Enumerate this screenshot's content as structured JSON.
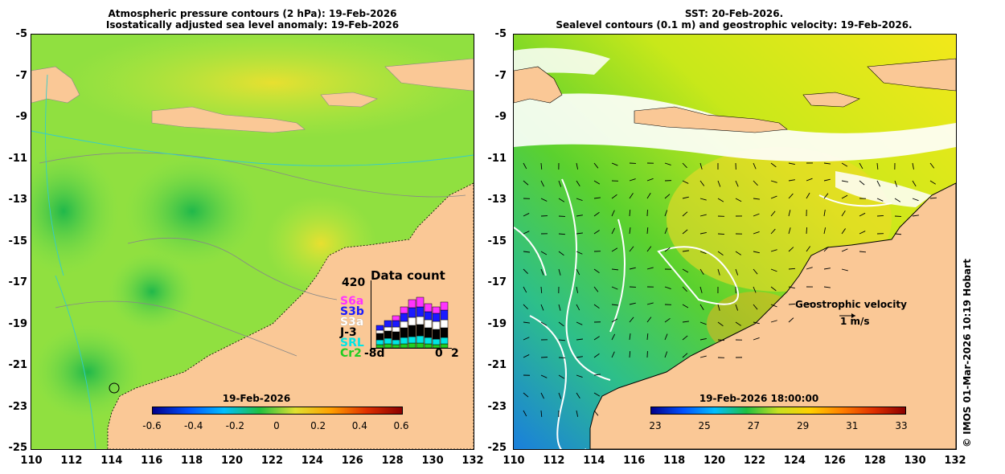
{
  "left_panel": {
    "title_line1": "Atmospheric pressure contours (2 hPa): 19-Feb-2026",
    "title_line2": "Isostatically adjusted sea level anomaly: 19-Feb-2026",
    "y_ticks": [
      "-5",
      "-7",
      "-9",
      "-11",
      "-13",
      "-15",
      "-17",
      "-19",
      "-21",
      "-23",
      "-25"
    ],
    "x_ticks": [
      "110",
      "112",
      "114",
      "116",
      "118",
      "120",
      "122",
      "124",
      "126",
      "128",
      "130",
      "132"
    ],
    "colorbar": {
      "title": "19-Feb-2026",
      "labels": [
        "-0.6",
        "-0.4",
        "-0.2",
        "0",
        "0.2",
        "0.4",
        "0.6"
      ],
      "range": [
        -0.6,
        0.6
      ]
    },
    "data_count": {
      "title": "Data count",
      "max": "420",
      "x_left": "-8d",
      "x_mid": "0",
      "x_right": "2",
      "missions": [
        {
          "name": "S6a",
          "color": "#ff33ff"
        },
        {
          "name": "S3b",
          "color": "#1a1aff"
        },
        {
          "name": "S3a",
          "color": "#ffffff"
        },
        {
          "name": "J-3",
          "color": "#000000"
        },
        {
          "name": "SRL",
          "color": "#00e5e5"
        },
        {
          "name": "Cr2",
          "color": "#22cc22"
        }
      ]
    }
  },
  "right_panel": {
    "title_line1": "SST: 20-Feb-2026.",
    "title_line2": "Sealevel contours (0.1 m) and geostrophic velocity: 19-Feb-2026.",
    "y_ticks": [
      "-5",
      "-7",
      "-9",
      "-11",
      "-13",
      "-15",
      "-17",
      "-19",
      "-21",
      "-23",
      "-25"
    ],
    "x_ticks": [
      "110",
      "112",
      "114",
      "116",
      "118",
      "120",
      "122",
      "124",
      "126",
      "128",
      "130",
      "132"
    ],
    "velocity_label": "Geostrophic velocity",
    "velocity_scale": "1 m/s",
    "colorbar": {
      "title": "19-Feb-2026 18:00:00",
      "labels": [
        "23",
        "25",
        "27",
        "29",
        "31",
        "33"
      ],
      "range": [
        23,
        33
      ]
    }
  },
  "credit": "© IMOS 01-Mar-2026 10:19 Hobart",
  "colors": {
    "land": "#fac896",
    "sea_green": "#55dd33",
    "sea_yellow": "#e8f020",
    "cloud": "#ffffff"
  }
}
